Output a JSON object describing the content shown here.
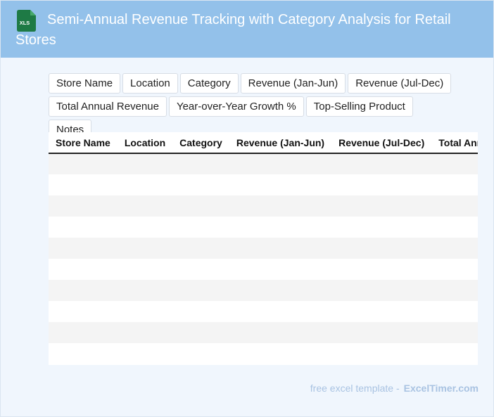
{
  "header": {
    "title": "Semi-Annual Revenue Tracking with Category Analysis for Retail Stores",
    "icon": "xls-file-icon",
    "icon_label": "XLS",
    "icon_color": "#1e7a45",
    "background": "#93c1ea"
  },
  "chips": [
    "Store Name",
    "Location",
    "Category",
    "Revenue (Jan-Jun)",
    "Revenue (Jul-Dec)",
    "Total Annual Revenue",
    "Year-over-Year Growth %",
    "Top-Selling Product",
    "Notes"
  ],
  "table": {
    "columns": [
      "Store Name",
      "Location",
      "Category",
      "Revenue (Jan-Jun)",
      "Revenue (Jul-Dec)",
      "Total Annual Revenue",
      "Year-over-Year Growth %",
      "Top-Selling Product",
      "Notes"
    ],
    "rows": [
      [
        "",
        "",
        "",
        "",
        "",
        "",
        "",
        "",
        ""
      ],
      [
        "",
        "",
        "",
        "",
        "",
        "",
        "",
        "",
        ""
      ],
      [
        "",
        "",
        "",
        "",
        "",
        "",
        "",
        "",
        ""
      ],
      [
        "",
        "",
        "",
        "",
        "",
        "",
        "",
        "",
        ""
      ],
      [
        "",
        "",
        "",
        "",
        "",
        "",
        "",
        "",
        ""
      ],
      [
        "",
        "",
        "",
        "",
        "",
        "",
        "",
        "",
        ""
      ],
      [
        "",
        "",
        "",
        "",
        "",
        "",
        "",
        "",
        ""
      ],
      [
        "",
        "",
        "",
        "",
        "",
        "",
        "",
        "",
        ""
      ],
      [
        "",
        "",
        "",
        "",
        "",
        "",
        "",
        "",
        ""
      ],
      [
        "",
        "",
        "",
        "",
        "",
        "",
        "",
        "",
        ""
      ]
    ]
  },
  "footer": {
    "text": "free excel template -",
    "brand": "ExcelTimer.com"
  }
}
